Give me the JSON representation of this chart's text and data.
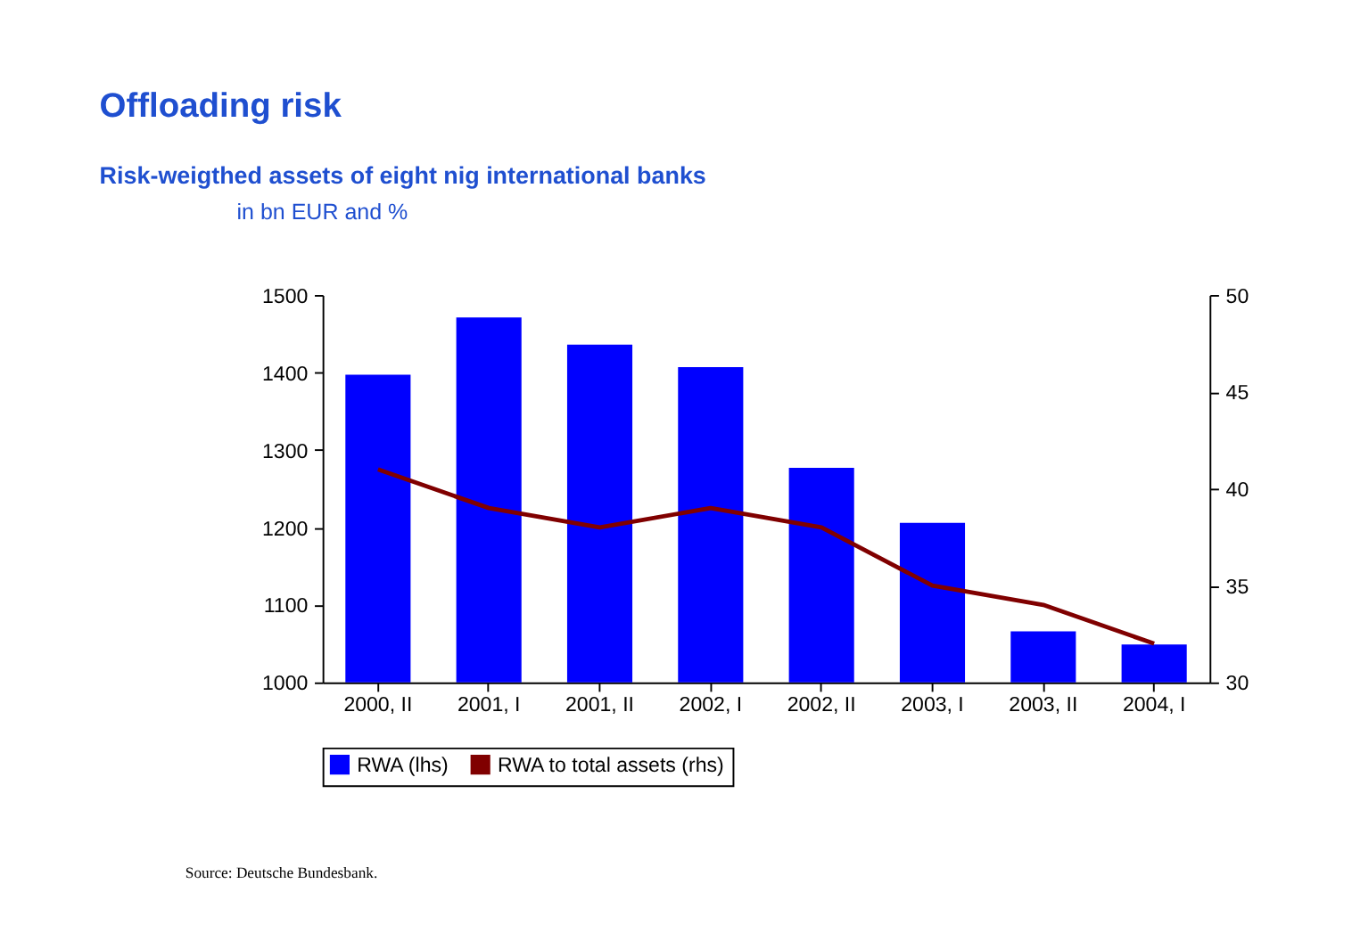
{
  "chart_data": {
    "type": "bar",
    "title": "Offloading risk",
    "subtitle": "Risk-weigthed assets of eight nig international banks",
    "annotations": [
      "in bn EUR and %",
      "Source: Deutsche Bundesbank."
    ],
    "categories": [
      "2000, II",
      "2001, I",
      "2001, II",
      "2002, I",
      "2002, II",
      "2003, I",
      "2003, II",
      "2004, I"
    ],
    "series": [
      {
        "name": "RWA (lhs)",
        "color": "#0000ff",
        "values": [
          1397,
          1471,
          1436,
          1407,
          1277,
          1206,
          1066,
          1049
        ]
      },
      {
        "name": "RWA to total assets (rhs)",
        "color": "#800000",
        "type": "line",
        "axis": "y2",
        "values": [
          41,
          39,
          38,
          39,
          38,
          35,
          34,
          32
        ]
      }
    ],
    "ylim": [
      1000,
      1500
    ],
    "yticks": [
      {
        "value": 1000,
        "label": "1000"
      },
      {
        "value": 1100,
        "label": "1100"
      },
      {
        "value": 1200,
        "label": "1200"
      },
      {
        "value": 1300,
        "label": "1300"
      },
      {
        "value": 1400,
        "label": "1400"
      },
      {
        "value": 1500,
        "label": "1500"
      }
    ],
    "y2lim": [
      30,
      50
    ],
    "y2ticks": [
      30,
      35,
      40,
      45,
      50
    ],
    "grid": false,
    "legend": "bottom",
    "marker": "none",
    "line_style": "solid"
  }
}
